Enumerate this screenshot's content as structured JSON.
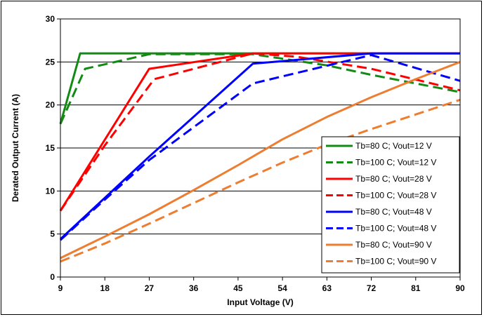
{
  "chart_data": {
    "type": "line",
    "xlabel": "Input Voltage (V)",
    "ylabel": "Derated Output Current (A)",
    "xlim": [
      9,
      90
    ],
    "ylim": [
      0,
      30
    ],
    "x_ticks": [
      9,
      18,
      27,
      36,
      45,
      54,
      63,
      72,
      81,
      90
    ],
    "y_ticks": [
      0,
      5,
      10,
      15,
      20,
      25,
      30
    ],
    "grid": "horizontal",
    "legend_position": "bottom-right",
    "series": [
      {
        "name": "Tb=80 C; Vout=12 V",
        "color": "#138a13",
        "style": "solid",
        "x": [
          9,
          13,
          90
        ],
        "y": [
          17.8,
          26,
          26
        ]
      },
      {
        "name": "Tb=100 C; Vout=12 V",
        "color": "#138a13",
        "style": "dashed",
        "x": [
          9,
          14,
          27,
          48,
          63,
          72,
          90
        ],
        "y": [
          17.8,
          24.2,
          25.9,
          25.9,
          24.6,
          23.5,
          21.5
        ]
      },
      {
        "name": "Tb=80 C; Vout=28 V",
        "color": "#ff0000",
        "style": "solid",
        "x": [
          9,
          27,
          48,
          90
        ],
        "y": [
          7.7,
          24.2,
          26,
          26
        ]
      },
      {
        "name": "Tb=100 C; Vout=28 V",
        "color": "#ff0000",
        "style": "dashed",
        "x": [
          9,
          18,
          28,
          48,
          57,
          72,
          90
        ],
        "y": [
          7.7,
          15.3,
          23.0,
          26,
          25.6,
          24.2,
          21.7
        ]
      },
      {
        "name": "Tb=80 C; Vout=48 V",
        "color": "#0000ff",
        "style": "solid",
        "x": [
          9,
          27,
          48,
          72,
          90
        ],
        "y": [
          4.4,
          14.0,
          24.8,
          26,
          26
        ]
      },
      {
        "name": "Tb=100 C; Vout=48 V",
        "color": "#0000ff",
        "style": "dashed",
        "x": [
          9,
          18,
          27,
          48,
          72,
          81,
          90
        ],
        "y": [
          4.3,
          9.0,
          13.6,
          22.5,
          25.8,
          24.3,
          22.8
        ]
      },
      {
        "name": "Tb=80 C; Vout=90 V",
        "color": "#ed7d31",
        "style": "solid",
        "x": [
          9,
          18,
          27,
          36,
          45,
          54,
          63,
          72,
          81,
          90
        ],
        "y": [
          2.2,
          4.7,
          7.3,
          10.1,
          13.0,
          16.0,
          18.6,
          20.9,
          23.0,
          25.0
        ]
      },
      {
        "name": "Tb=100 C; Vout=90 V",
        "color": "#ed7d31",
        "style": "dashed",
        "x": [
          9,
          18,
          27,
          36,
          45,
          54,
          63,
          72,
          81,
          90
        ],
        "y": [
          1.8,
          3.9,
          6.2,
          8.6,
          11.0,
          13.3,
          15.4,
          17.2,
          18.9,
          20.6
        ]
      }
    ]
  }
}
